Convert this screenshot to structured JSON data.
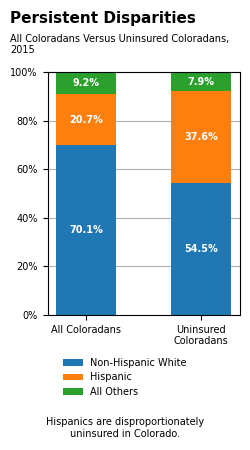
{
  "chart_data": {
    "type": "bar",
    "stacked": true,
    "title": "Persistent Disparities",
    "subtitle": "All Coloradans Versus Uninsured Coloradans, 2015",
    "categories": [
      "All Coloradans",
      "Uninsured\nColoradans"
    ],
    "series": [
      {
        "name": "Non-Hispanic White",
        "values": [
          70.1,
          54.5
        ],
        "value_labels": [
          "70.1%",
          "54.5%"
        ]
      },
      {
        "name": "Hispanic",
        "values": [
          20.7,
          37.6
        ],
        "value_labels": [
          "20.7%",
          "37.6%"
        ]
      },
      {
        "name": "All Others",
        "values": [
          9.2,
          7.9
        ],
        "value_labels": [
          "9.2%",
          "7.9%"
        ]
      }
    ],
    "data_labels": true,
    "ylim": [
      0,
      100
    ],
    "yticks": [
      {
        "value": 0,
        "label": "0%"
      },
      {
        "value": 20,
        "label": "20%"
      },
      {
        "value": 40,
        "label": "40%"
      },
      {
        "value": 60,
        "label": "60%"
      },
      {
        "value": 80,
        "label": "80%"
      },
      {
        "value": 100,
        "label": "100%"
      }
    ],
    "grid": true,
    "legend": "upper center",
    "annotations": [
      "Hispanics are disproportionately\nuninsured in Colorado."
    ]
  }
}
